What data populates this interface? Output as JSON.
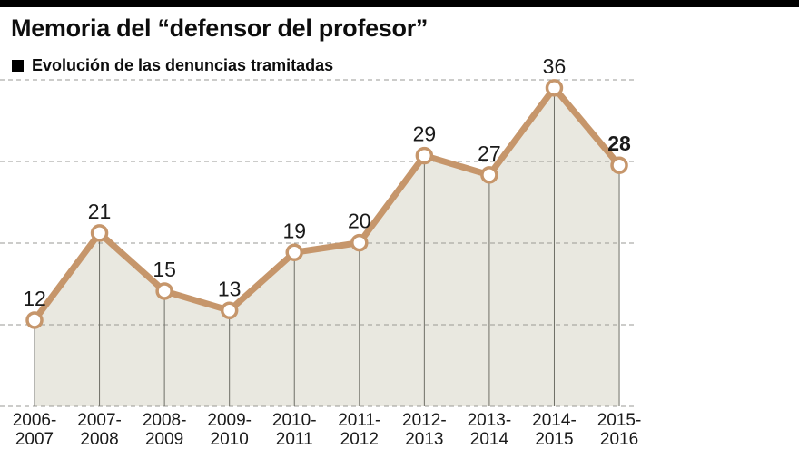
{
  "chart_data": {
    "type": "area",
    "title": "Memoria del “defensor del profesor”",
    "subtitle": "Evolución de las denuncias tramitadas",
    "categories": [
      "2006-\n2007",
      "2007-\n2008",
      "2008-\n2009",
      "2009-\n2010",
      "2010-\n2011",
      "2011-\n2012",
      "2012-\n2013",
      "2013-\n2014",
      "2014-\n2015",
      "2015-\n2016"
    ],
    "values": [
      12,
      21,
      15,
      13,
      19,
      20,
      29,
      27,
      36,
      28
    ],
    "bold_last_value": true,
    "ylim": [
      0,
      40
    ],
    "grid": "dashed-horizontal",
    "legend": "none",
    "colors": {
      "line": "#c6966b",
      "marker_fill": "#ffffff",
      "area": "#e9e8e0",
      "grid": "#9a9a94",
      "stem": "#6e6e66",
      "text": "#1a1a1a",
      "rule": "#000000"
    }
  }
}
